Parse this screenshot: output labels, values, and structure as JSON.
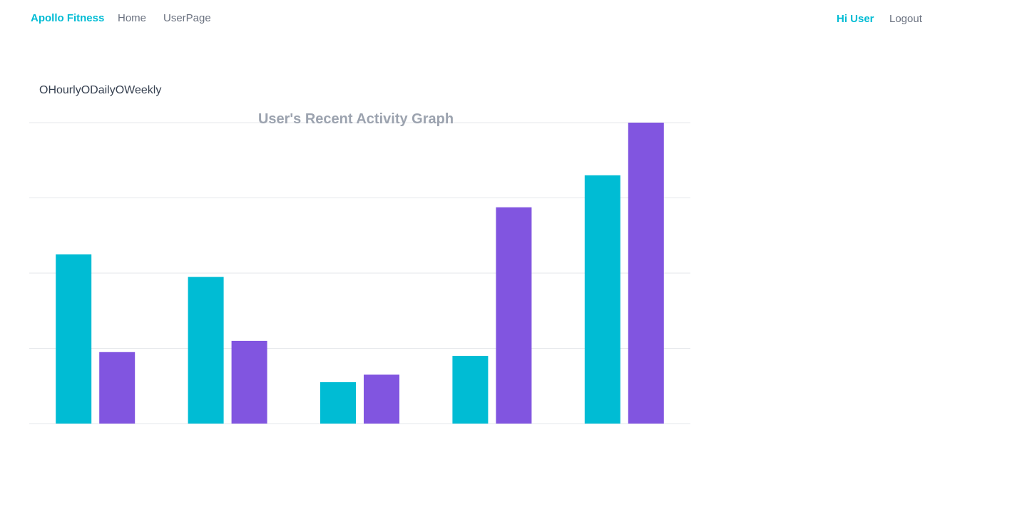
{
  "navbar": {
    "brand": "Apollo Fitness",
    "links": [
      {
        "label": "Home"
      },
      {
        "label": "UserPage"
      }
    ],
    "greeting": "Hi User",
    "logout": "Logout"
  },
  "range_selector": {
    "options": [
      {
        "mark": "O",
        "label": "Hourly"
      },
      {
        "mark": "O",
        "label": "Daily"
      },
      {
        "mark": "O",
        "label": "Weekly"
      }
    ]
  },
  "colors": {
    "accent": "#00bcd4",
    "series_1": "#00bcd4",
    "series_2": "#8155e0",
    "grid": "#e5e7eb",
    "title": "#9ca3af"
  },
  "chart_data": {
    "type": "bar",
    "title": "User's Recent Activity Graph",
    "categories": [
      "",
      "",
      "",
      "",
      ""
    ],
    "series": [
      {
        "values": [
          45,
          39,
          11,
          18,
          66
        ]
      },
      {
        "values": [
          19,
          22,
          13,
          57.5,
          80
        ]
      }
    ],
    "ylim": [
      0,
      80
    ],
    "grid": true,
    "xlabel": "",
    "ylabel": ""
  }
}
